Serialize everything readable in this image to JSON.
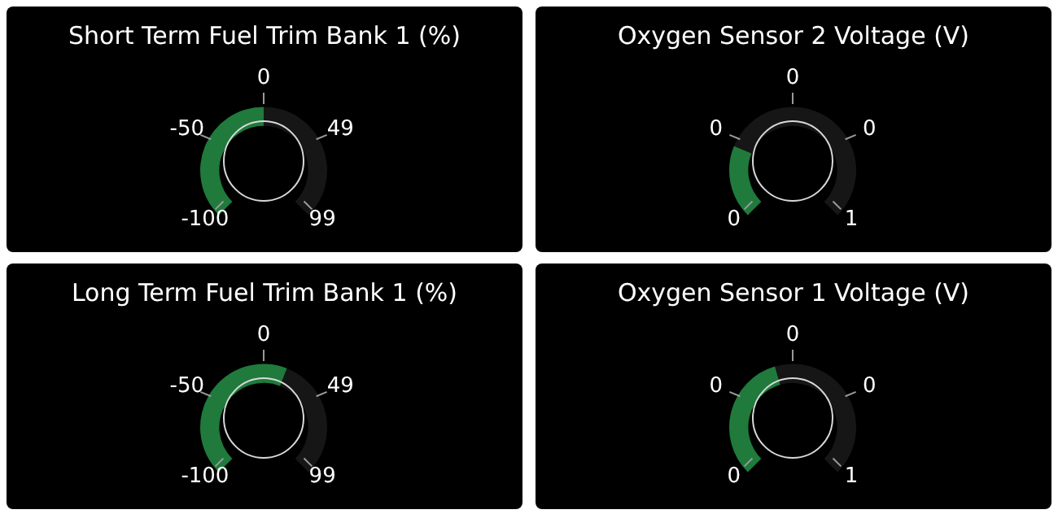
{
  "chart_data": [
    {
      "type": "donut",
      "title": "Short Term Fuel Trim Bank 1 (%)",
      "categories": [
        null,
        null
      ],
      "values": [
        50,
        50
      ],
      "colors": [
        "#1f7a3c",
        "#161616"
      ],
      "annotations": [
        "-100",
        "-50",
        "0",
        "49",
        "99"
      ]
    },
    {
      "type": "donut",
      "title": "Oxygen Sensor 2 Voltage (V)",
      "categories": [
        null,
        null
      ],
      "values": [
        25,
        75
      ],
      "colors": [
        "#1f7a3c",
        "#161616"
      ],
      "annotations": [
        "0",
        "0",
        "0",
        "0",
        "1"
      ]
    },
    {
      "type": "donut",
      "title": "Long Term Fuel Trim Bank 1 (%)",
      "categories": [
        null,
        null
      ],
      "values": [
        58,
        42
      ],
      "colors": [
        "#1f7a3c",
        "#161616"
      ],
      "annotations": [
        "-100",
        "-50",
        "0",
        "49",
        "99"
      ]
    },
    {
      "type": "donut",
      "title": "Oxygen Sensor 1 Voltage (V)",
      "categories": [
        null,
        null
      ],
      "values": [
        44,
        56
      ],
      "colors": [
        "#1f7a3c",
        "#161616"
      ],
      "annotations": [
        "0",
        "0",
        "0",
        "0",
        "1"
      ]
    }
  ]
}
